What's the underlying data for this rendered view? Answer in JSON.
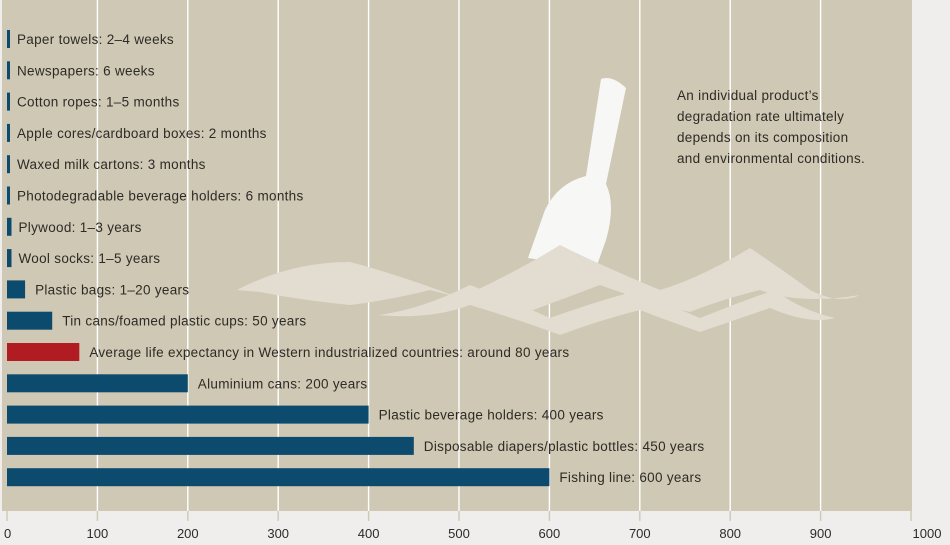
{
  "chart_data": {
    "type": "bar",
    "orientation": "horizontal",
    "unit": "years",
    "xlim": [
      0,
      1000
    ],
    "xticks": [
      "0",
      "100",
      "200",
      "300",
      "400",
      "500",
      "600",
      "700",
      "800",
      "900",
      "1000"
    ],
    "grid": true,
    "colors": {
      "bar": "#0c4a6e",
      "highlight": "#b01c22",
      "background": "#cfc8b5",
      "grid": "#ffffff"
    },
    "items": [
      {
        "label": "Paper towels: 2–4 weeks",
        "value": 0.06,
        "highlight": false
      },
      {
        "label": "Newspapers: 6 weeks",
        "value": 0.12,
        "highlight": false
      },
      {
        "label": "Cotton ropes: 1–5 months",
        "value": 0.25,
        "highlight": false
      },
      {
        "label": "Apple cores/cardboard boxes: 2 months",
        "value": 0.17,
        "highlight": false
      },
      {
        "label": "Waxed milk cartons: 3 months",
        "value": 0.25,
        "highlight": false
      },
      {
        "label": "Photodegradable beverage holders: 6 months",
        "value": 0.5,
        "highlight": false
      },
      {
        "label": "Plywood: 1–3 years",
        "value": 2,
        "highlight": false
      },
      {
        "label": "Wool socks: 1–5 years",
        "value": 3,
        "highlight": false
      },
      {
        "label": "Plastic bags: 1–20 years",
        "value": 20,
        "highlight": false
      },
      {
        "label": "Tin cans/foamed plastic cups: 50 years",
        "value": 50,
        "highlight": false
      },
      {
        "label": "Average life expectancy in Western industrialized countries: around 80 years",
        "value": 80,
        "highlight": true
      },
      {
        "label": "Aluminium cans: 200 years",
        "value": 200,
        "highlight": false
      },
      {
        "label": "Plastic beverage holders: 400 years",
        "value": 400,
        "highlight": false
      },
      {
        "label": "Disposable diapers/plastic bottles: 450 years",
        "value": 450,
        "highlight": false
      },
      {
        "label": "Fishing line: 600 years",
        "value": 600,
        "highlight": false
      }
    ],
    "annotation": [
      "An individual product’s",
      "degradation rate ultimately",
      "depends on its composition",
      "and environmental conditions."
    ]
  }
}
